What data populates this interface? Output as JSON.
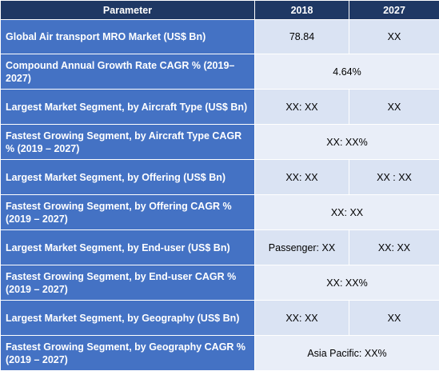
{
  "table": {
    "headers": [
      "Parameter",
      "2018",
      "2027"
    ],
    "rows": [
      {
        "label": "Global Air transport MRO Market (US$ Bn)",
        "v2018": "78.84",
        "v2027": "XX"
      },
      {
        "label": "Compound Annual Growth Rate CAGR % (2019–2027)",
        "merged": "4.64%"
      },
      {
        "label": "Largest Market Segment, by Aircraft Type (US$ Bn)",
        "v2018": "XX: XX",
        "v2027": "XX"
      },
      {
        "label": "Fastest Growing Segment, by Aircraft Type CAGR % (2019 – 2027)",
        "merged": "XX: XX%"
      },
      {
        "label": "Largest Market Segment, by Offering (US$ Bn)",
        "v2018": "XX: XX",
        "v2027": "XX : XX"
      },
      {
        "label": "Fastest Growing Segment, by Offering CAGR % (2019 – 2027)",
        "merged": "XX: XX"
      },
      {
        "label": "Largest Market Segment, by End-user (US$ Bn)",
        "v2018": "Passenger: XX",
        "v2027": "XX: XX"
      },
      {
        "label": "Fastest Growing Segment, by End-user CAGR % (2019 – 2027)",
        "merged": "XX: XX%"
      },
      {
        "label": "Largest Market Segment, by Geography (US$ Bn)",
        "v2018": "XX: XX",
        "v2027": "XX"
      },
      {
        "label": "Fastest Growing Segment, by Geography CAGR % (2019 – 2027)",
        "merged": "Asia Pacific: XX%"
      }
    ]
  },
  "colors": {
    "header_bg": "#1f3864",
    "param_bg": "#4472c4",
    "value_bg_light": "#dae3f3",
    "value_bg_lighter": "#e9eef8"
  }
}
